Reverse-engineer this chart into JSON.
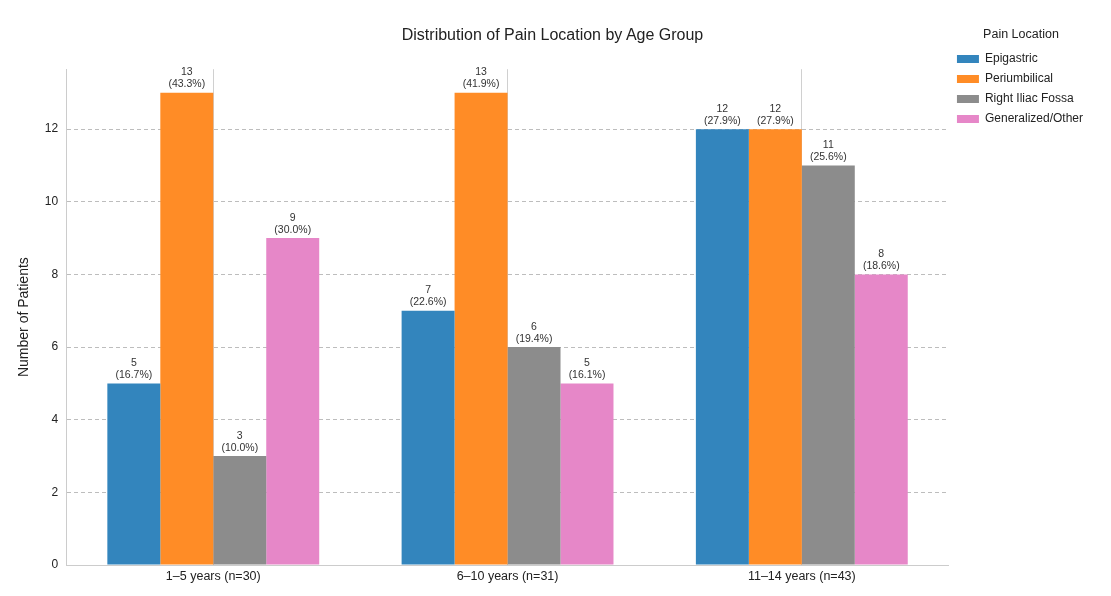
{
  "chart_data": {
    "type": "bar",
    "title": "Distribution of Pain Location by Age Group",
    "ylabel": "Number of Patients",
    "legend_title": "Pain Location",
    "categories": [
      "1–5 years (n=30)",
      "6–10 years (n=31)",
      "11–14 years (n=43)"
    ],
    "series": [
      {
        "name": "Epigastric",
        "color": "#3385bd",
        "values": [
          5,
          7,
          12
        ],
        "value_labels": [
          "5\n(16.7%)",
          "7\n(22.6%)",
          "12\n(27.9%)"
        ]
      },
      {
        "name": "Periumbilical",
        "color": "#ff8c26",
        "values": [
          13,
          13,
          12
        ],
        "value_labels": [
          "13\n(43.3%)",
          "13\n(41.9%)",
          "12\n(27.9%)"
        ]
      },
      {
        "name": "Right Iliac Fossa",
        "color": "#8c8c8c",
        "values": [
          3,
          6,
          11
        ],
        "value_labels": [
          "3\n(10.0%)",
          "6\n(19.4%)",
          "11\n(25.6%)"
        ]
      },
      {
        "name": "Generalized/Other",
        "color": "#e687c8",
        "values": [
          9,
          5,
          8
        ],
        "value_labels": [
          "9\n(30.0%)",
          "5\n(16.1%)",
          "8\n(18.6%)"
        ]
      }
    ],
    "ylim": [
      0,
      13.65
    ],
    "yticks": [
      0,
      2,
      4,
      6,
      8,
      10,
      12
    ],
    "grid": true,
    "legend": "top right"
  }
}
